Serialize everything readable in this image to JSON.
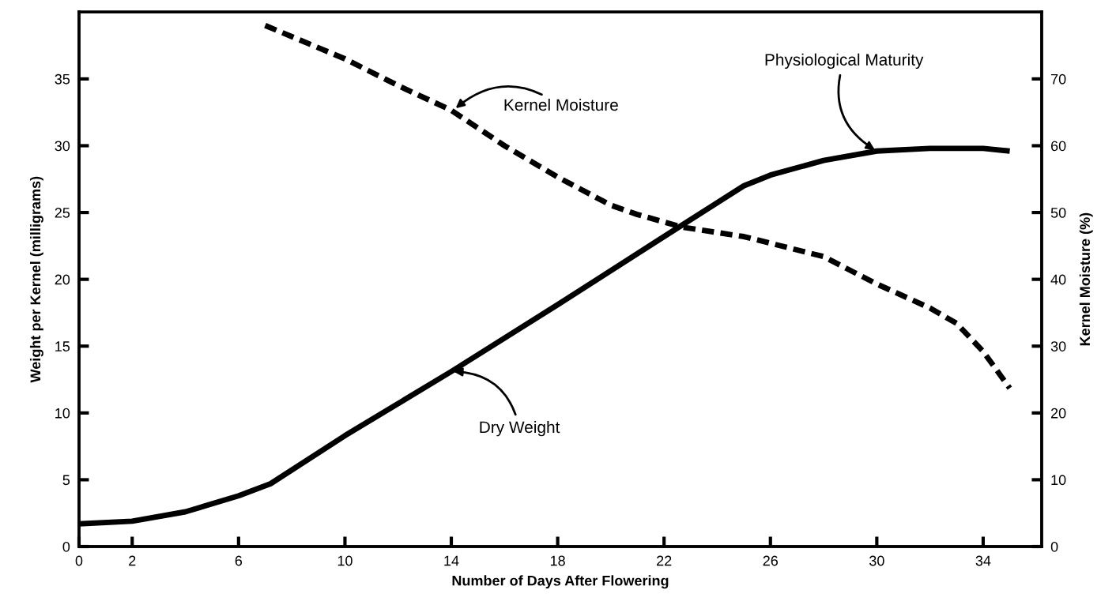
{
  "chart_data": {
    "type": "line",
    "xlabel": "Number of Days After Flowering",
    "ylabel": "Weight per Kernel (milligrams)",
    "y2label": "Kernel Moisture (%)",
    "xlim": [
      0,
      36.2
    ],
    "xticks": [
      0,
      2,
      6,
      10,
      14,
      18,
      22,
      26,
      30,
      34
    ],
    "ylim": [
      0,
      40
    ],
    "yticks": [
      0,
      5,
      10,
      15,
      20,
      25,
      30,
      35
    ],
    "y2lim": [
      0,
      80
    ],
    "y2ticks": [
      0,
      10,
      20,
      30,
      40,
      50,
      60,
      70
    ],
    "series": [
      {
        "color": "#000000",
        "line_style": "solid",
        "x": [
          0,
          2,
          4,
          6,
          7.2,
          10,
          14,
          18,
          22,
          25,
          26,
          28,
          30,
          32,
          34,
          35
        ],
        "values": [
          1.7,
          1.9,
          2.6,
          3.8,
          4.7,
          8.3,
          13.1,
          18.1,
          23.2,
          27.0,
          27.8,
          28.9,
          29.6,
          29.8,
          29.8,
          29.6
        ]
      },
      {
        "color": "#000000",
        "line_style": "dashed",
        "axis": "y2",
        "x": [
          7,
          10,
          12,
          14,
          16,
          18,
          20,
          21,
          22.7,
          25,
          28,
          30,
          32,
          33,
          34,
          35
        ],
        "values": [
          78,
          73,
          69,
          65.3,
          60,
          55.3,
          51.1,
          49.7,
          47.8,
          46.4,
          43.4,
          39.3,
          35.7,
          33.4,
          29.2,
          23.7
        ]
      }
    ],
    "annotations": [
      {
        "text": "Kernel Moisture",
        "x": 14.1,
        "y": 32.7
      },
      {
        "text": "Physiological Maturity",
        "x": 30,
        "y": 29.6
      },
      {
        "text": "Dry Weight",
        "x": 14,
        "y": 13.1
      }
    ]
  }
}
